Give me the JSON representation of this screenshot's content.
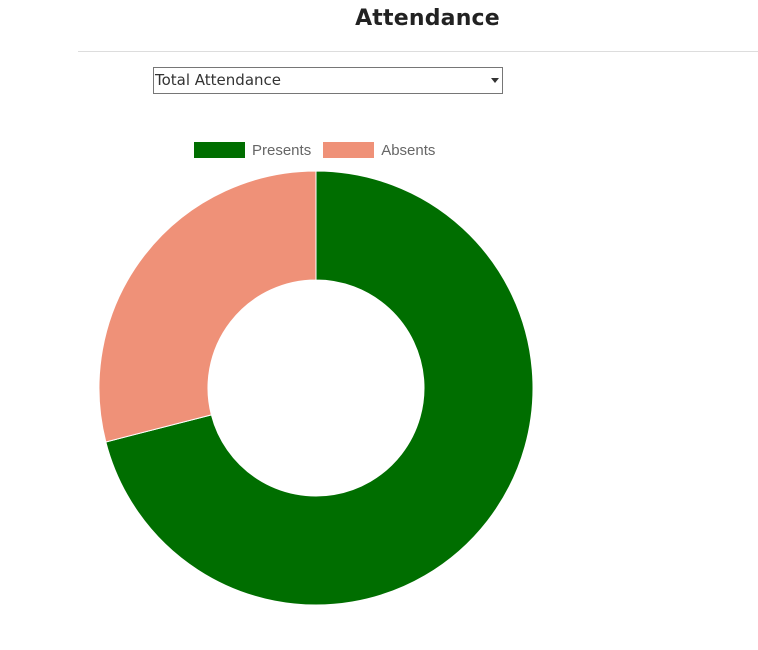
{
  "page": {
    "title": "Attendance"
  },
  "filter": {
    "selected": "Total Attendance"
  },
  "chart_data": {
    "type": "doughnut",
    "labels": [
      "Presents",
      "Absents"
    ],
    "values": [
      71,
      29
    ],
    "colors": [
      "#006e00",
      "#ef9178"
    ],
    "legend_position": "top"
  }
}
